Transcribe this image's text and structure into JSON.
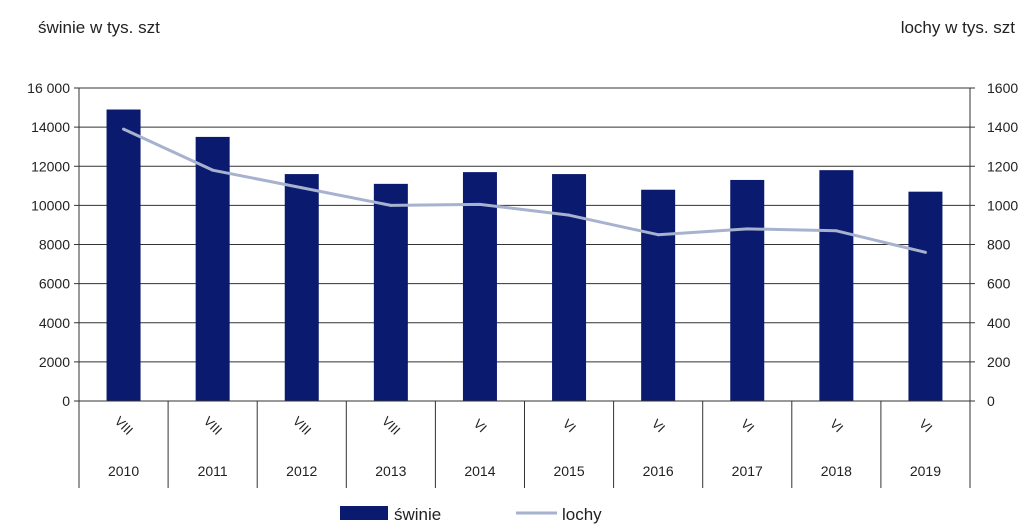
{
  "chart_data": {
    "type": "bar",
    "y_left_title": "świnie w tys. szt",
    "y_right_title": "lochy w tys. szt",
    "categories": [
      "2010",
      "2011",
      "2012",
      "2013",
      "2014",
      "2015",
      "2016",
      "2017",
      "2018",
      "2019"
    ],
    "months": [
      "VIII",
      "VIII",
      "VIII",
      "VIII",
      "VI",
      "VI",
      "VI",
      "VI",
      "VI",
      "VI"
    ],
    "series": [
      {
        "name": "świnie",
        "type": "bar",
        "axis": "left",
        "color": "#0a1a6e",
        "values": [
          14900,
          13500,
          11600,
          11100,
          11700,
          11600,
          10800,
          11300,
          11800,
          10700
        ]
      },
      {
        "name": "lochy",
        "type": "line",
        "axis": "right",
        "color": "#a7b2cf",
        "values": [
          1390,
          1180,
          1090,
          1000,
          1005,
          950,
          850,
          880,
          870,
          760
        ]
      }
    ],
    "y_left": {
      "min": 0,
      "max": 16000,
      "ticks": [
        "0",
        "2000",
        "4000",
        "6000",
        "8000",
        "10000",
        "12000",
        "14000",
        "16 000"
      ]
    },
    "y_right": {
      "min": 0,
      "max": 1600,
      "ticks": [
        "0",
        "200",
        "400",
        "600",
        "800",
        "1000",
        "1200",
        "1400",
        "1600"
      ]
    },
    "grid": true,
    "legend": "bottom-center"
  }
}
